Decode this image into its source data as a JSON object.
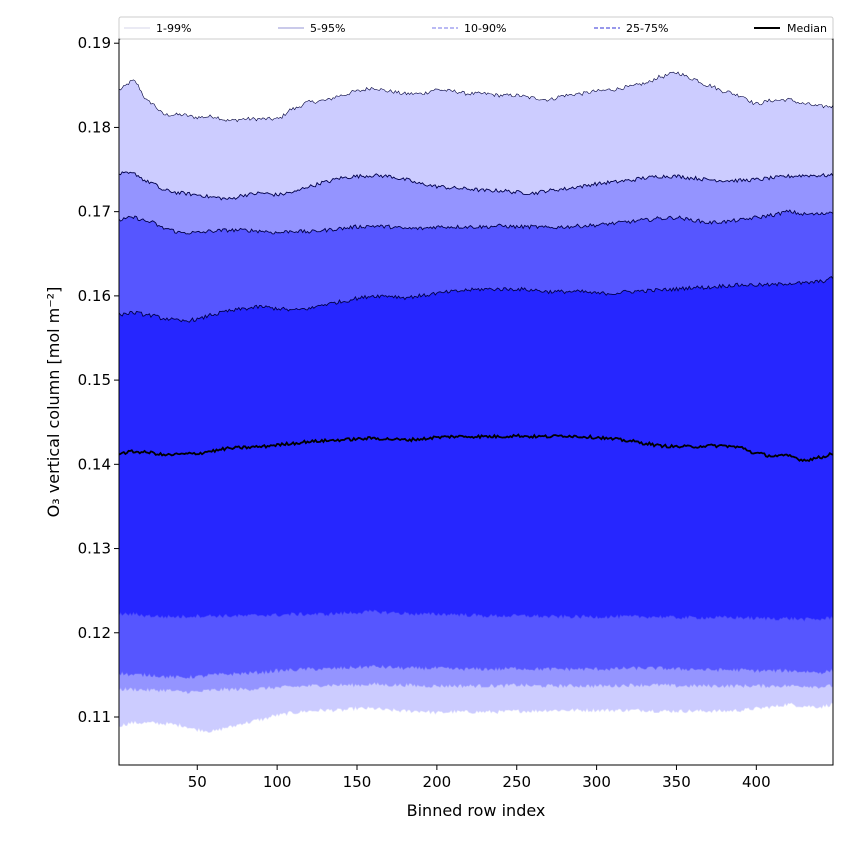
{
  "chart_data": {
    "type": "area",
    "title": "",
    "xlabel": "Binned row index",
    "ylabel": "O₃ vertical column [mol m⁻²]",
    "xlim": [
      1,
      448
    ],
    "ylim": [
      0.1043,
      0.1905
    ],
    "xticks": [
      50,
      100,
      150,
      200,
      250,
      300,
      350,
      400
    ],
    "yticks": [
      0.11,
      0.12,
      0.13,
      0.14,
      0.15,
      0.16,
      0.17,
      0.18,
      0.19
    ],
    "ytick_labels": [
      "0.11",
      "0.12",
      "0.13",
      "0.14",
      "0.15",
      "0.16",
      "0.17",
      "0.18",
      "0.19"
    ],
    "legend_position": "top",
    "x_knots": [
      1,
      10,
      20,
      30,
      40,
      50,
      60,
      70,
      80,
      90,
      100,
      110,
      120,
      130,
      140,
      150,
      160,
      170,
      180,
      190,
      200,
      210,
      220,
      230,
      240,
      250,
      260,
      270,
      280,
      290,
      300,
      310,
      320,
      330,
      340,
      350,
      360,
      370,
      380,
      390,
      400,
      410,
      420,
      430,
      440,
      448
    ],
    "bands": [
      {
        "name": "1-99%",
        "color": "#ccccff",
        "upper": [
          0.1845,
          0.1855,
          0.183,
          0.1815,
          0.1815,
          0.1812,
          0.1813,
          0.1808,
          0.181,
          0.181,
          0.181,
          0.1822,
          0.183,
          0.1832,
          0.1838,
          0.1843,
          0.1847,
          0.1843,
          0.184,
          0.184,
          0.1845,
          0.1843,
          0.184,
          0.184,
          0.1838,
          0.1838,
          0.1835,
          0.1833,
          0.1838,
          0.184,
          0.1843,
          0.1845,
          0.1848,
          0.1852,
          0.186,
          0.1865,
          0.1858,
          0.185,
          0.1843,
          0.1838,
          0.1828,
          0.1832,
          0.1833,
          0.1828,
          0.1825,
          0.1825
        ],
        "lower": [
          0.109,
          0.1093,
          0.1093,
          0.1092,
          0.109,
          0.1085,
          0.1083,
          0.1088,
          0.1093,
          0.1097,
          0.1102,
          0.1105,
          0.1107,
          0.1108,
          0.1108,
          0.111,
          0.111,
          0.1108,
          0.1107,
          0.1107,
          0.1105,
          0.1106,
          0.1106,
          0.1106,
          0.1106,
          0.1107,
          0.1107,
          0.1108,
          0.1108,
          0.1108,
          0.1108,
          0.1108,
          0.1108,
          0.1108,
          0.1107,
          0.1107,
          0.1107,
          0.1107,
          0.1107,
          0.1108,
          0.111,
          0.1112,
          0.1115,
          0.1113,
          0.1112,
          0.1115
        ]
      },
      {
        "name": "5-95%",
        "color": "#9494ff",
        "upper": [
          0.1745,
          0.1745,
          0.1735,
          0.1725,
          0.1722,
          0.172,
          0.1717,
          0.1715,
          0.172,
          0.1722,
          0.172,
          0.1723,
          0.173,
          0.1735,
          0.174,
          0.1742,
          0.1743,
          0.1742,
          0.1738,
          0.1733,
          0.173,
          0.1728,
          0.1727,
          0.1725,
          0.1725,
          0.1723,
          0.1722,
          0.1725,
          0.1727,
          0.173,
          0.1733,
          0.1735,
          0.1737,
          0.174,
          0.1742,
          0.1742,
          0.174,
          0.1738,
          0.1737,
          0.1737,
          0.1738,
          0.174,
          0.1742,
          0.1743,
          0.1743,
          0.1743
        ],
        "lower": [
          0.1133,
          0.1133,
          0.1132,
          0.1132,
          0.113,
          0.113,
          0.1132,
          0.1133,
          0.1133,
          0.1134,
          0.1135,
          0.1136,
          0.1137,
          0.1138,
          0.1138,
          0.1138,
          0.1139,
          0.1138,
          0.1138,
          0.1137,
          0.1137,
          0.1137,
          0.1137,
          0.1137,
          0.1137,
          0.1138,
          0.1137,
          0.1137,
          0.1137,
          0.1137,
          0.1137,
          0.1137,
          0.1138,
          0.1138,
          0.1138,
          0.1137,
          0.1137,
          0.1137,
          0.1137,
          0.1137,
          0.1137,
          0.1137,
          0.1137,
          0.1137,
          0.1136,
          0.1137
        ]
      },
      {
        "name": "10-90%",
        "color": "#5656ff",
        "upper": [
          0.169,
          0.1693,
          0.1688,
          0.168,
          0.1675,
          0.1675,
          0.1677,
          0.1678,
          0.1678,
          0.1677,
          0.1675,
          0.1677,
          0.1676,
          0.1678,
          0.168,
          0.1682,
          0.1683,
          0.1682,
          0.168,
          0.168,
          0.1682,
          0.1682,
          0.1682,
          0.1682,
          0.1683,
          0.1682,
          0.1682,
          0.1681,
          0.1682,
          0.1683,
          0.1684,
          0.1686,
          0.1688,
          0.169,
          0.1692,
          0.1693,
          0.169,
          0.1687,
          0.1688,
          0.169,
          0.1693,
          0.1696,
          0.17,
          0.1697,
          0.1697,
          0.17
        ],
        "lower": [
          0.1152,
          0.115,
          0.115,
          0.1148,
          0.1147,
          0.1148,
          0.115,
          0.1151,
          0.1152,
          0.1153,
          0.1155,
          0.1156,
          0.1157,
          0.1157,
          0.1158,
          0.1159,
          0.116,
          0.1159,
          0.1158,
          0.1158,
          0.1158,
          0.1157,
          0.1157,
          0.1157,
          0.1157,
          0.1158,
          0.1157,
          0.1157,
          0.1157,
          0.1157,
          0.1157,
          0.1157,
          0.1158,
          0.1158,
          0.1158,
          0.1157,
          0.1157,
          0.1156,
          0.1156,
          0.1156,
          0.1155,
          0.1155,
          0.1155,
          0.1154,
          0.1153,
          0.1155
        ]
      },
      {
        "name": "25-75%",
        "color": "#2626ff",
        "upper": [
          0.1578,
          0.158,
          0.1577,
          0.1573,
          0.157,
          0.1572,
          0.1578,
          0.1582,
          0.1585,
          0.1587,
          0.1585,
          0.1583,
          0.1585,
          0.159,
          0.1593,
          0.1597,
          0.16,
          0.16,
          0.1598,
          0.16,
          0.1603,
          0.1605,
          0.1607,
          0.1608,
          0.1608,
          0.1608,
          0.1607,
          0.1605,
          0.1605,
          0.1605,
          0.1603,
          0.1603,
          0.1605,
          0.1606,
          0.1607,
          0.1608,
          0.161,
          0.161,
          0.1612,
          0.1613,
          0.1613,
          0.1613,
          0.1615,
          0.1615,
          0.1617,
          0.1621
        ],
        "lower": [
          0.1222,
          0.1222,
          0.122,
          0.1219,
          0.1219,
          0.122,
          0.122,
          0.122,
          0.122,
          0.1221,
          0.1221,
          0.1222,
          0.1222,
          0.1222,
          0.1223,
          0.1224,
          0.1225,
          0.1224,
          0.1223,
          0.1222,
          0.1222,
          0.1222,
          0.1221,
          0.122,
          0.122,
          0.122,
          0.122,
          0.1219,
          0.1219,
          0.1219,
          0.1219,
          0.1219,
          0.1219,
          0.1219,
          0.1219,
          0.1218,
          0.1218,
          0.1218,
          0.1218,
          0.1218,
          0.1217,
          0.1217,
          0.1217,
          0.1216,
          0.1216,
          0.1218
        ]
      }
    ],
    "median": {
      "name": "Median",
      "color": "#000000",
      "values": [
        0.1413,
        0.1415,
        0.1414,
        0.1411,
        0.1412,
        0.1413,
        0.1416,
        0.1419,
        0.142,
        0.1421,
        0.1423,
        0.1425,
        0.1427,
        0.1428,
        0.1429,
        0.143,
        0.1431,
        0.143,
        0.1429,
        0.143,
        0.1432,
        0.1433,
        0.1433,
        0.1433,
        0.1433,
        0.1434,
        0.1433,
        0.1433,
        0.1434,
        0.1433,
        0.1432,
        0.143,
        0.1428,
        0.1425,
        0.1422,
        0.1421,
        0.1421,
        0.1422,
        0.1422,
        0.142,
        0.1413,
        0.141,
        0.141,
        0.1405,
        0.1408,
        0.1413
      ]
    },
    "legend": [
      {
        "label": "1-99%",
        "style": "solid",
        "color": "#ddddee"
      },
      {
        "label": "5-95%",
        "style": "solid",
        "color": "#aaaadd"
      },
      {
        "label": "10-90%",
        "style": "dashed",
        "color": "#9090ee"
      },
      {
        "label": "25-75%",
        "style": "dashed",
        "color": "#5a5adf"
      },
      {
        "label": "Median",
        "style": "solid",
        "color": "#000000"
      }
    ]
  }
}
